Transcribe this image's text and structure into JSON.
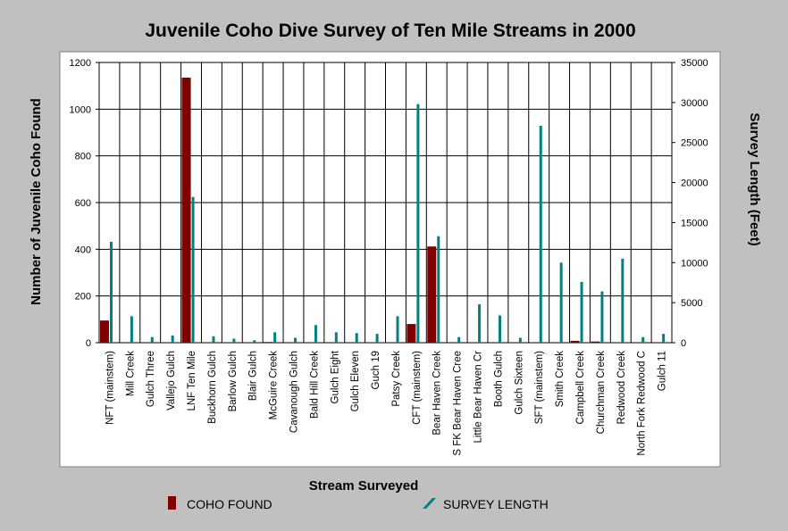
{
  "chart_data": {
    "type": "bar",
    "title": "Juvenile Coho Dive Survey of Ten Mile Streams in 2000",
    "xlabel": "Stream Surveyed",
    "ylabel": "Number of Juvenile Coho Found",
    "y2label": "Survey Length (Feet)",
    "ylim": [
      0,
      1200
    ],
    "y2lim": [
      0,
      35000
    ],
    "yticks": [
      0,
      200,
      400,
      600,
      800,
      1000,
      1200
    ],
    "y2ticks": [
      0,
      5000,
      10000,
      15000,
      20000,
      25000,
      30000,
      35000
    ],
    "grid": true,
    "legend_position": "bottom",
    "categories": [
      "NFT (mainstem)",
      "Mill Creek",
      "Gulch Three",
      "Vallejo Gulch",
      "LNF Ten Mile",
      "Buckhorn Gulch",
      "Barlow Gulch",
      "Blair Gulch",
      "McGuire Creek",
      "Cavanough Gulch",
      "Bald Hill Creek",
      "Gulch Eight",
      "Gulch Eleven",
      "Guch 19",
      "Patsy Creek",
      "CFT (mainstem)",
      "Bear Haven Creek",
      "S FK Bear Haven Cree",
      "Little Bear Haven Cr",
      "Booth Gulch",
      "Gulch Sixteen",
      "SFT (mainstem)",
      "Smith Creek",
      "Campbell Creek",
      "Churchman Creek",
      "Redwood Creek",
      "North Fork Redwood C",
      "Gulch 11"
    ],
    "series": [
      {
        "name": "COHO FOUND",
        "axis": "left",
        "color": "#800000",
        "values": [
          95,
          0,
          0,
          0,
          1135,
          0,
          0,
          0,
          3,
          0,
          0,
          0,
          0,
          0,
          0,
          80,
          412,
          0,
          0,
          0,
          0,
          0,
          0,
          8,
          5,
          0,
          0,
          0
        ]
      },
      {
        "name": "SURVEY LENGTH",
        "axis": "right",
        "color": "#008080",
        "values": [
          12600,
          3300,
          700,
          900,
          18200,
          800,
          500,
          300,
          1300,
          600,
          2200,
          1300,
          1200,
          1100,
          3300,
          29800,
          13300,
          700,
          4800,
          3400,
          600,
          27100,
          10000,
          7600,
          6400,
          10500,
          700,
          1100
        ]
      }
    ]
  }
}
